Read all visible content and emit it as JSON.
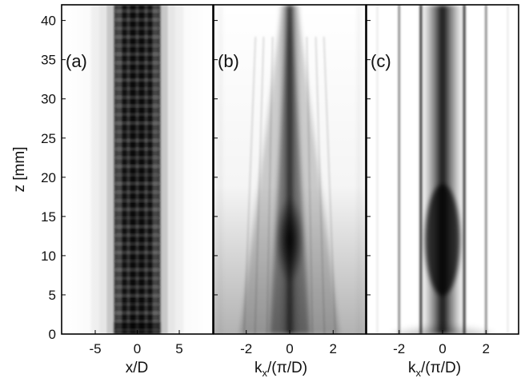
{
  "chart_data": {
    "type": "heatmap",
    "colormap": "white-to-black",
    "y_axis": {
      "label": "z [mm]",
      "range": [
        0,
        42
      ],
      "ticks": [
        0,
        5,
        10,
        15,
        20,
        25,
        30,
        35,
        40
      ]
    },
    "panels": [
      {
        "label": "(a)",
        "x_axis": {
          "label_main": "x/D",
          "label_sub": "",
          "label_tail": "",
          "range": [
            -9,
            9
          ],
          "ticks": [
            -5,
            0,
            5
          ]
        },
        "ticks_text": [
          "-5",
          "0",
          "5"
        ],
        "pattern": "waveguide-array intensity: bright discrete channels at x/D = 0, ±1, ±2 over the full z range, faint outer tails"
      },
      {
        "label": "(b)",
        "x_axis": {
          "label_main": "k",
          "label_sub": "x",
          "label_tail": "/(π/D)",
          "range": [
            -3.5,
            3.5
          ],
          "ticks": [
            -2,
            0,
            2
          ]
        },
        "ticks_text": [
          "-2",
          "0",
          "2"
        ],
        "pattern": "spectrum: broad near z=0, narrowing toward k=0 with strongest peak near z ≈ 12 mm"
      },
      {
        "label": "(c)",
        "x_axis": {
          "label_main": "k",
          "label_sub": "x",
          "label_tail": "/(π/D)",
          "range": [
            -3.5,
            3.5
          ],
          "ticks": [
            -2,
            0,
            2
          ]
        },
        "ticks_text": [
          "-2",
          "0",
          "2"
        ],
        "pattern": "spectrum: central band at k=0 with peak near z ≈ 12 mm, sharp side lines at k ≈ ±1 and ±2"
      }
    ],
    "ytick_text": [
      "0",
      "5",
      "10",
      "15",
      "20",
      "25",
      "30",
      "35",
      "40"
    ]
  }
}
